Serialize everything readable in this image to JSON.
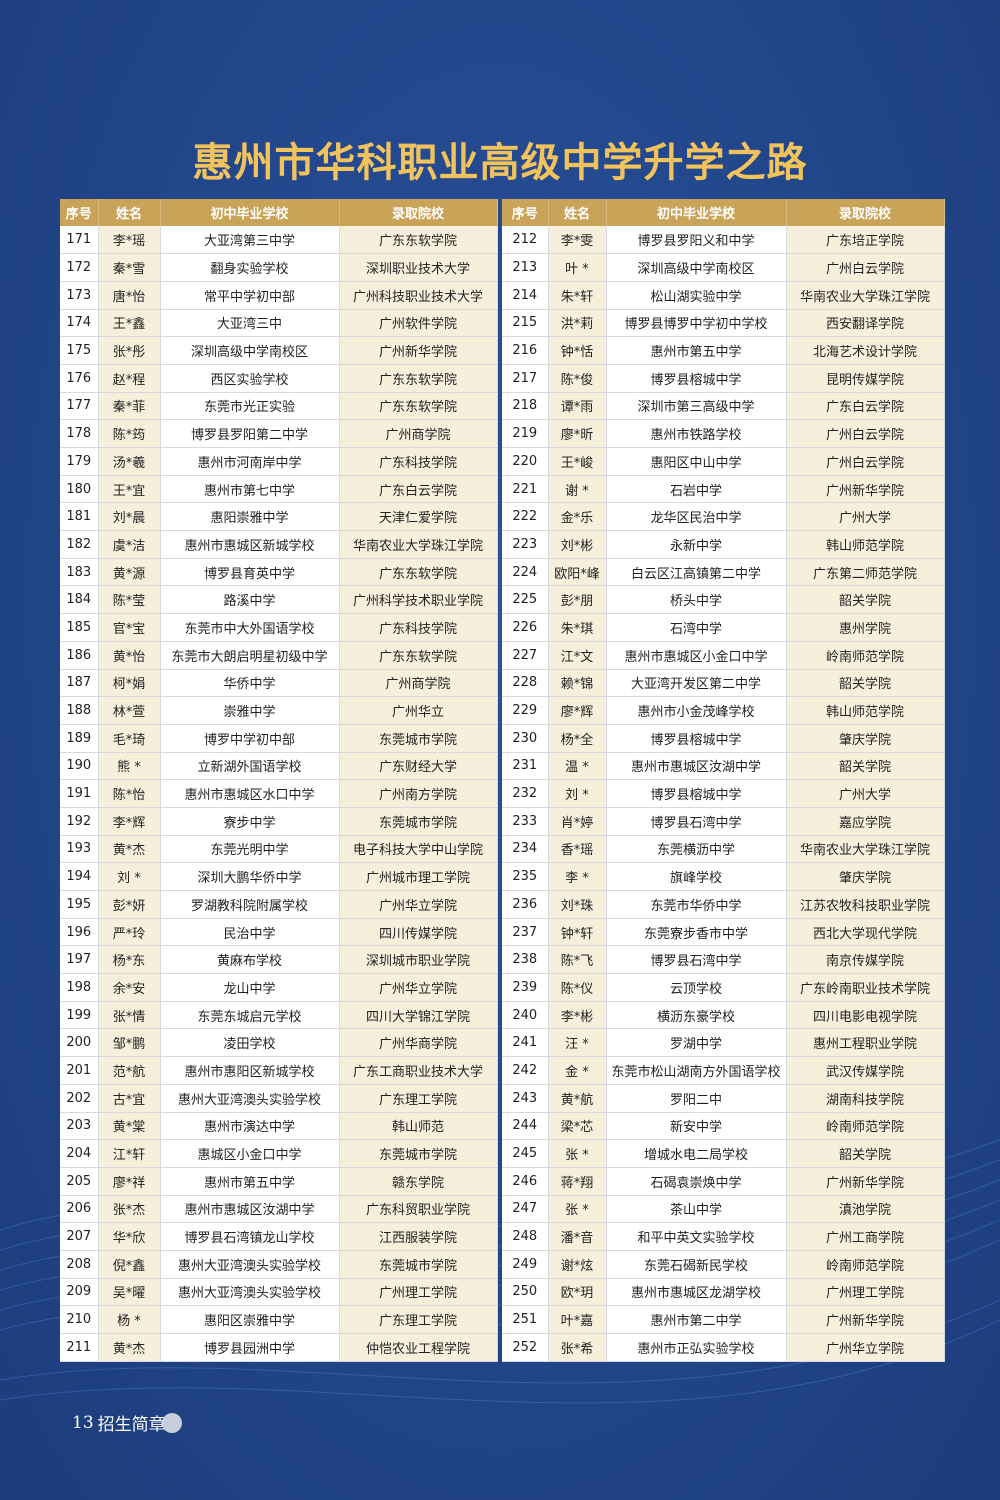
{
  "title": "惠州市华科职业高级中学升学之路",
  "headers": [
    "序号",
    "姓名",
    "初中毕业学校",
    "录取院校"
  ],
  "footer": {
    "page": "13",
    "label": "招生简章"
  },
  "colors": {
    "background": "#22468a",
    "title": "#f2c35c",
    "header": "#c9a458",
    "highlight": "#f6efdc"
  },
  "left_rows": [
    [
      "171",
      "李*瑶",
      "大亚湾第三中学",
      "广东东软学院"
    ],
    [
      "172",
      "秦*雪",
      "翻身实验学校",
      "深圳职业技术大学"
    ],
    [
      "173",
      "唐*怡",
      "常平中学初中部",
      "广州科技职业技术大学"
    ],
    [
      "174",
      "王*鑫",
      "大亚湾三中",
      "广州软件学院"
    ],
    [
      "175",
      "张*彤",
      "深圳高级中学南校区",
      "广州新华学院"
    ],
    [
      "176",
      "赵*程",
      "西区实验学校",
      "广东东软学院"
    ],
    [
      "177",
      "秦*菲",
      "东莞市光正实验",
      "广东东软学院"
    ],
    [
      "178",
      "陈*筠",
      "博罗县罗阳第二中学",
      "广州商学院"
    ],
    [
      "179",
      "汤*羲",
      "惠州市河南岸中学",
      "广东科技学院"
    ],
    [
      "180",
      "王*宜",
      "惠州市第七中学",
      "广东白云学院"
    ],
    [
      "181",
      "刘*晨",
      "惠阳崇雅中学",
      "天津仁爱学院"
    ],
    [
      "182",
      "虞*洁",
      "惠州市惠城区新城学校",
      "华南农业大学珠江学院"
    ],
    [
      "183",
      "黄*源",
      "博罗县育英中学",
      "广东东软学院"
    ],
    [
      "184",
      "陈*莹",
      "路溪中学",
      "广州科学技术职业学院"
    ],
    [
      "185",
      "官*宝",
      "东莞市中大外国语学校",
      "广东科技学院"
    ],
    [
      "186",
      "黄*怡",
      "东莞市大朗启明星初级中学",
      "广东东软学院"
    ],
    [
      "187",
      "柯*娟",
      "华侨中学",
      "广州商学院"
    ],
    [
      "188",
      "林*萱",
      "崇雅中学",
      "广州华立"
    ],
    [
      "189",
      "毛*琦",
      "博罗中学初中部",
      "东莞城市学院"
    ],
    [
      "190",
      "熊 *",
      "立新湖外国语学校",
      "广东财经大学"
    ],
    [
      "191",
      "陈*怡",
      "惠州市惠城区水口中学",
      "广州南方学院"
    ],
    [
      "192",
      "李*辉",
      "寮步中学",
      "东莞城市学院"
    ],
    [
      "193",
      "黄*杰",
      "东莞光明中学",
      "电子科技大学中山学院"
    ],
    [
      "194",
      "刘 *",
      "深圳大鹏华侨中学",
      "广州城市理工学院"
    ],
    [
      "195",
      "彭*妍",
      "罗湖教科院附属学校",
      "广州华立学院"
    ],
    [
      "196",
      "严*玲",
      "民治中学",
      "四川传媒学院"
    ],
    [
      "197",
      "杨*东",
      "黄麻布学校",
      "深圳城市职业学院"
    ],
    [
      "198",
      "余*安",
      "龙山中学",
      "广州华立学院"
    ],
    [
      "199",
      "张*情",
      "东莞东城启元学校",
      "四川大学锦江学院"
    ],
    [
      "200",
      "邹*鹏",
      "凌田学校",
      "广州华商学院"
    ],
    [
      "201",
      "范*航",
      "惠州市惠阳区新城学校",
      "广东工商职业技术大学"
    ],
    [
      "202",
      "古*宜",
      "惠州大亚湾澳头实验学校",
      "广东理工学院"
    ],
    [
      "203",
      "黄*棠",
      "惠州市演达中学",
      "韩山师范"
    ],
    [
      "204",
      "江*轩",
      "惠城区小金口中学",
      "东莞城市学院"
    ],
    [
      "205",
      "廖*祥",
      "惠州市第五中学",
      "赣东学院"
    ],
    [
      "206",
      "张*杰",
      "惠州市惠城区汝湖中学",
      "广东科贸职业学院"
    ],
    [
      "207",
      "华*欣",
      "博罗县石湾镇龙山学校",
      "江西服装学院"
    ],
    [
      "208",
      "倪*鑫",
      "惠州大亚湾澳头实验学校",
      "东莞城市学院"
    ],
    [
      "209",
      "吴*曜",
      "惠州大亚湾澳头实验学校",
      "广州理工学院"
    ],
    [
      "210",
      "杨 *",
      "惠阳区崇雅中学",
      "广东理工学院"
    ],
    [
      "211",
      "黄*杰",
      "博罗县园洲中学",
      "仲恺农业工程学院"
    ]
  ],
  "right_rows": [
    [
      "212",
      "李*雯",
      "博罗县罗阳义和中学",
      "广东培正学院"
    ],
    [
      "213",
      "叶 *",
      "深圳高级中学南校区",
      "广州白云学院"
    ],
    [
      "214",
      "朱*轩",
      "松山湖实验中学",
      "华南农业大学珠江学院"
    ],
    [
      "215",
      "洪*莉",
      "博罗县博罗中学初中学校",
      "西安翻译学院"
    ],
    [
      "216",
      "钟*恬",
      "惠州市第五中学",
      "北海艺术设计学院"
    ],
    [
      "217",
      "陈*俊",
      "博罗县榕城中学",
      "昆明传媒学院"
    ],
    [
      "218",
      "谭*雨",
      "深圳市第三高级中学",
      "广东白云学院"
    ],
    [
      "219",
      "廖*昕",
      "惠州市铁路学校",
      "广州白云学院"
    ],
    [
      "220",
      "王*峻",
      "惠阳区中山中学",
      "广州白云学院"
    ],
    [
      "221",
      "谢 *",
      "石岩中学",
      "广州新华学院"
    ],
    [
      "222",
      "金*乐",
      "龙华区民治中学",
      "广州大学"
    ],
    [
      "223",
      "刘*彬",
      "永新中学",
      "韩山师范学院"
    ],
    [
      "224",
      "欧阳*峰",
      "白云区江高镇第二中学",
      "广东第二师范学院"
    ],
    [
      "225",
      "彭*朋",
      "桥头中学",
      "韶关学院"
    ],
    [
      "226",
      "朱*琪",
      "石湾中学",
      "惠州学院"
    ],
    [
      "227",
      "江*文",
      "惠州市惠城区小金口中学",
      "岭南师范学院"
    ],
    [
      "228",
      "赖*锦",
      "大亚湾开发区第二中学",
      "韶关学院"
    ],
    [
      "229",
      "廖*辉",
      "惠州市小金茂峰学校",
      "韩山师范学院"
    ],
    [
      "230",
      "杨*全",
      "博罗县榕城中学",
      "肇庆学院"
    ],
    [
      "231",
      "温 *",
      "惠州市惠城区汝湖中学",
      "韶关学院"
    ],
    [
      "232",
      "刘 *",
      "博罗县榕城中学",
      "广州大学"
    ],
    [
      "233",
      "肖*婷",
      "博罗县石湾中学",
      "嘉应学院"
    ],
    [
      "234",
      "香*瑶",
      "东莞横沥中学",
      "华南农业大学珠江学院"
    ],
    [
      "235",
      "李 *",
      "旗峰学校",
      "肇庆学院"
    ],
    [
      "236",
      "刘*珠",
      "东莞市华侨中学",
      "江苏农牧科技职业学院"
    ],
    [
      "237",
      "钟*轩",
      "东莞寮步香市中学",
      "西北大学现代学院"
    ],
    [
      "238",
      "陈*飞",
      "博罗县石湾中学",
      "南京传媒学院"
    ],
    [
      "239",
      "陈*仪",
      "云顶学校",
      "广东岭南职业技术学院"
    ],
    [
      "240",
      "李*彬",
      "横沥东豪学校",
      "四川电影电视学院"
    ],
    [
      "241",
      "汪 *",
      "罗湖中学",
      "惠州工程职业学院"
    ],
    [
      "242",
      "金 *",
      "东莞市松山湖南方外国语学校",
      "武汉传媒学院"
    ],
    [
      "243",
      "黄*航",
      "罗阳二中",
      "湖南科技学院"
    ],
    [
      "244",
      "梁*芯",
      "新安中学",
      "岭南师范学院"
    ],
    [
      "245",
      "张 *",
      "增城水电二局学校",
      "韶关学院"
    ],
    [
      "246",
      "蒋*翔",
      "石碣袁崇焕中学",
      "广州新华学院"
    ],
    [
      "247",
      "张 *",
      "茶山中学",
      "滇池学院"
    ],
    [
      "248",
      "潘*音",
      "和平中英文实验学校",
      "广州工商学院"
    ],
    [
      "249",
      "谢*炫",
      "东莞石碣新民学校",
      "岭南师范学院"
    ],
    [
      "250",
      "欧*玥",
      "惠州市惠城区龙湖学校",
      "广州理工学院"
    ],
    [
      "251",
      "叶*嘉",
      "惠州市第二中学",
      "广州新华学院"
    ],
    [
      "252",
      "张*希",
      "惠州市正弘实验学校",
      "广州华立学院"
    ]
  ]
}
